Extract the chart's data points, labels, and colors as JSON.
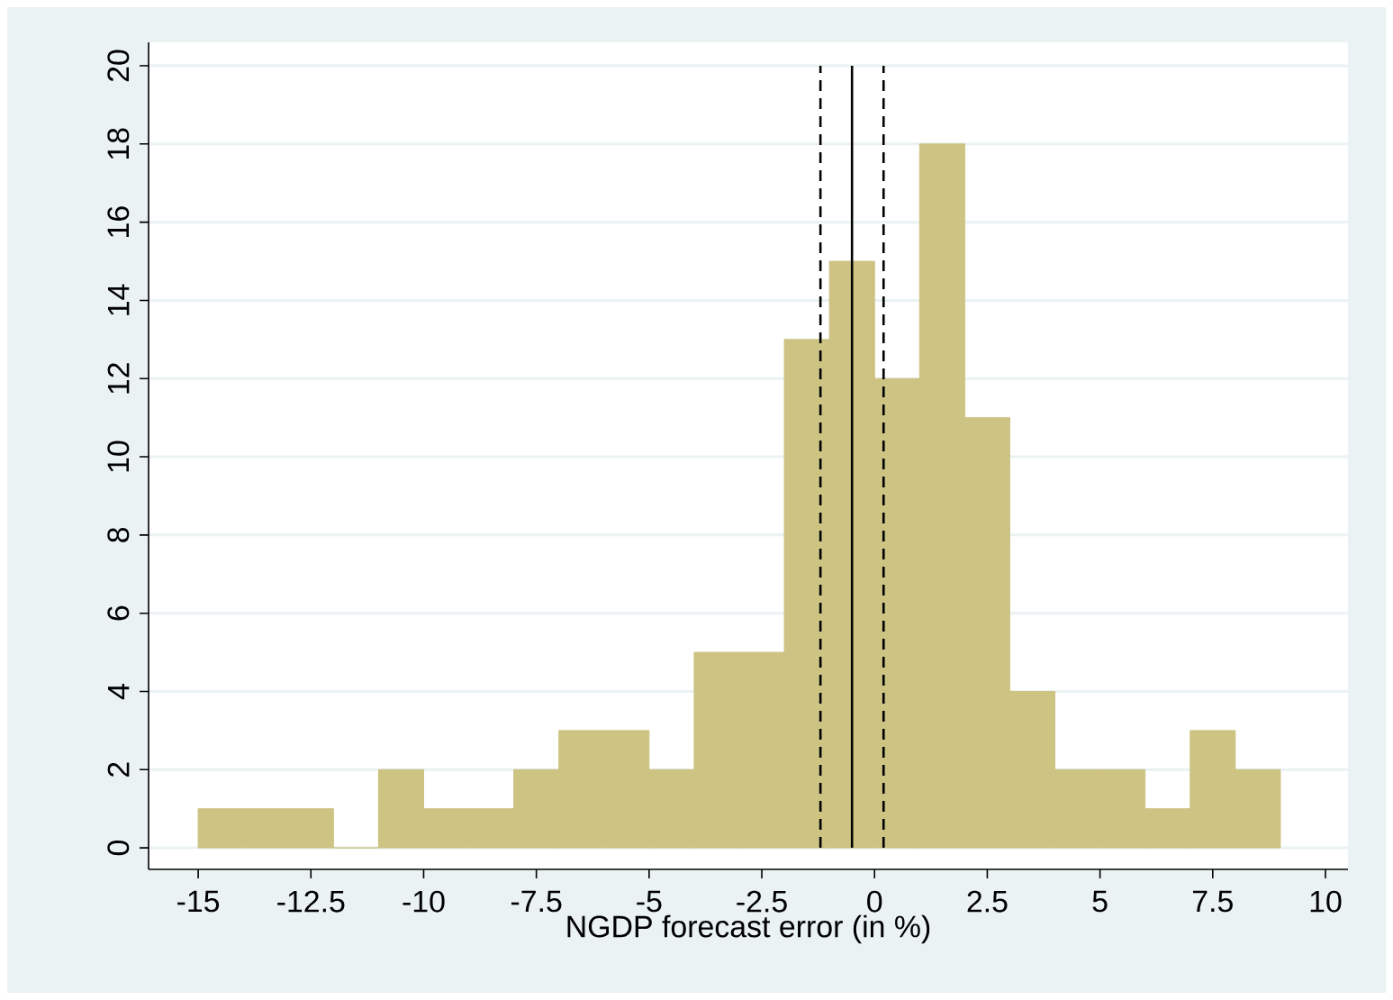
{
  "chart_data": {
    "type": "histogram",
    "xlabel": "NGDP forecast error (in %)",
    "bins": [
      -15,
      -14,
      -13,
      -12,
      -11,
      -10,
      -9,
      -8,
      -7,
      -6,
      -5,
      -4,
      -3,
      -2,
      -1,
      0,
      1,
      2,
      3,
      4,
      5,
      6,
      7,
      8,
      9
    ],
    "values": [
      1,
      1,
      1,
      0,
      2,
      1,
      1,
      2,
      3,
      3,
      2,
      5,
      5,
      13,
      15,
      12,
      18,
      11,
      4,
      2,
      2,
      1,
      3,
      2
    ],
    "color": "#cdc383",
    "xlim": [
      -16.1,
      10.5
    ],
    "ylim": [
      -0.55,
      20.6
    ],
    "xticks": [
      -15,
      -12.5,
      -10,
      -7.5,
      -5,
      -2.5,
      0,
      2.5,
      5,
      7.5,
      10
    ],
    "yticks": [
      0,
      2,
      4,
      6,
      8,
      10,
      12,
      14,
      16,
      18,
      20
    ],
    "grid": "y",
    "ref_lines": [
      {
        "axis": "x",
        "value": -1.2,
        "line_style": "dashed",
        "color": "#000000"
      },
      {
        "axis": "x",
        "value": -0.5,
        "line_style": "solid",
        "color": "#000000"
      },
      {
        "axis": "x",
        "value": 0.2,
        "line_style": "dashed",
        "color": "#000000"
      }
    ]
  }
}
